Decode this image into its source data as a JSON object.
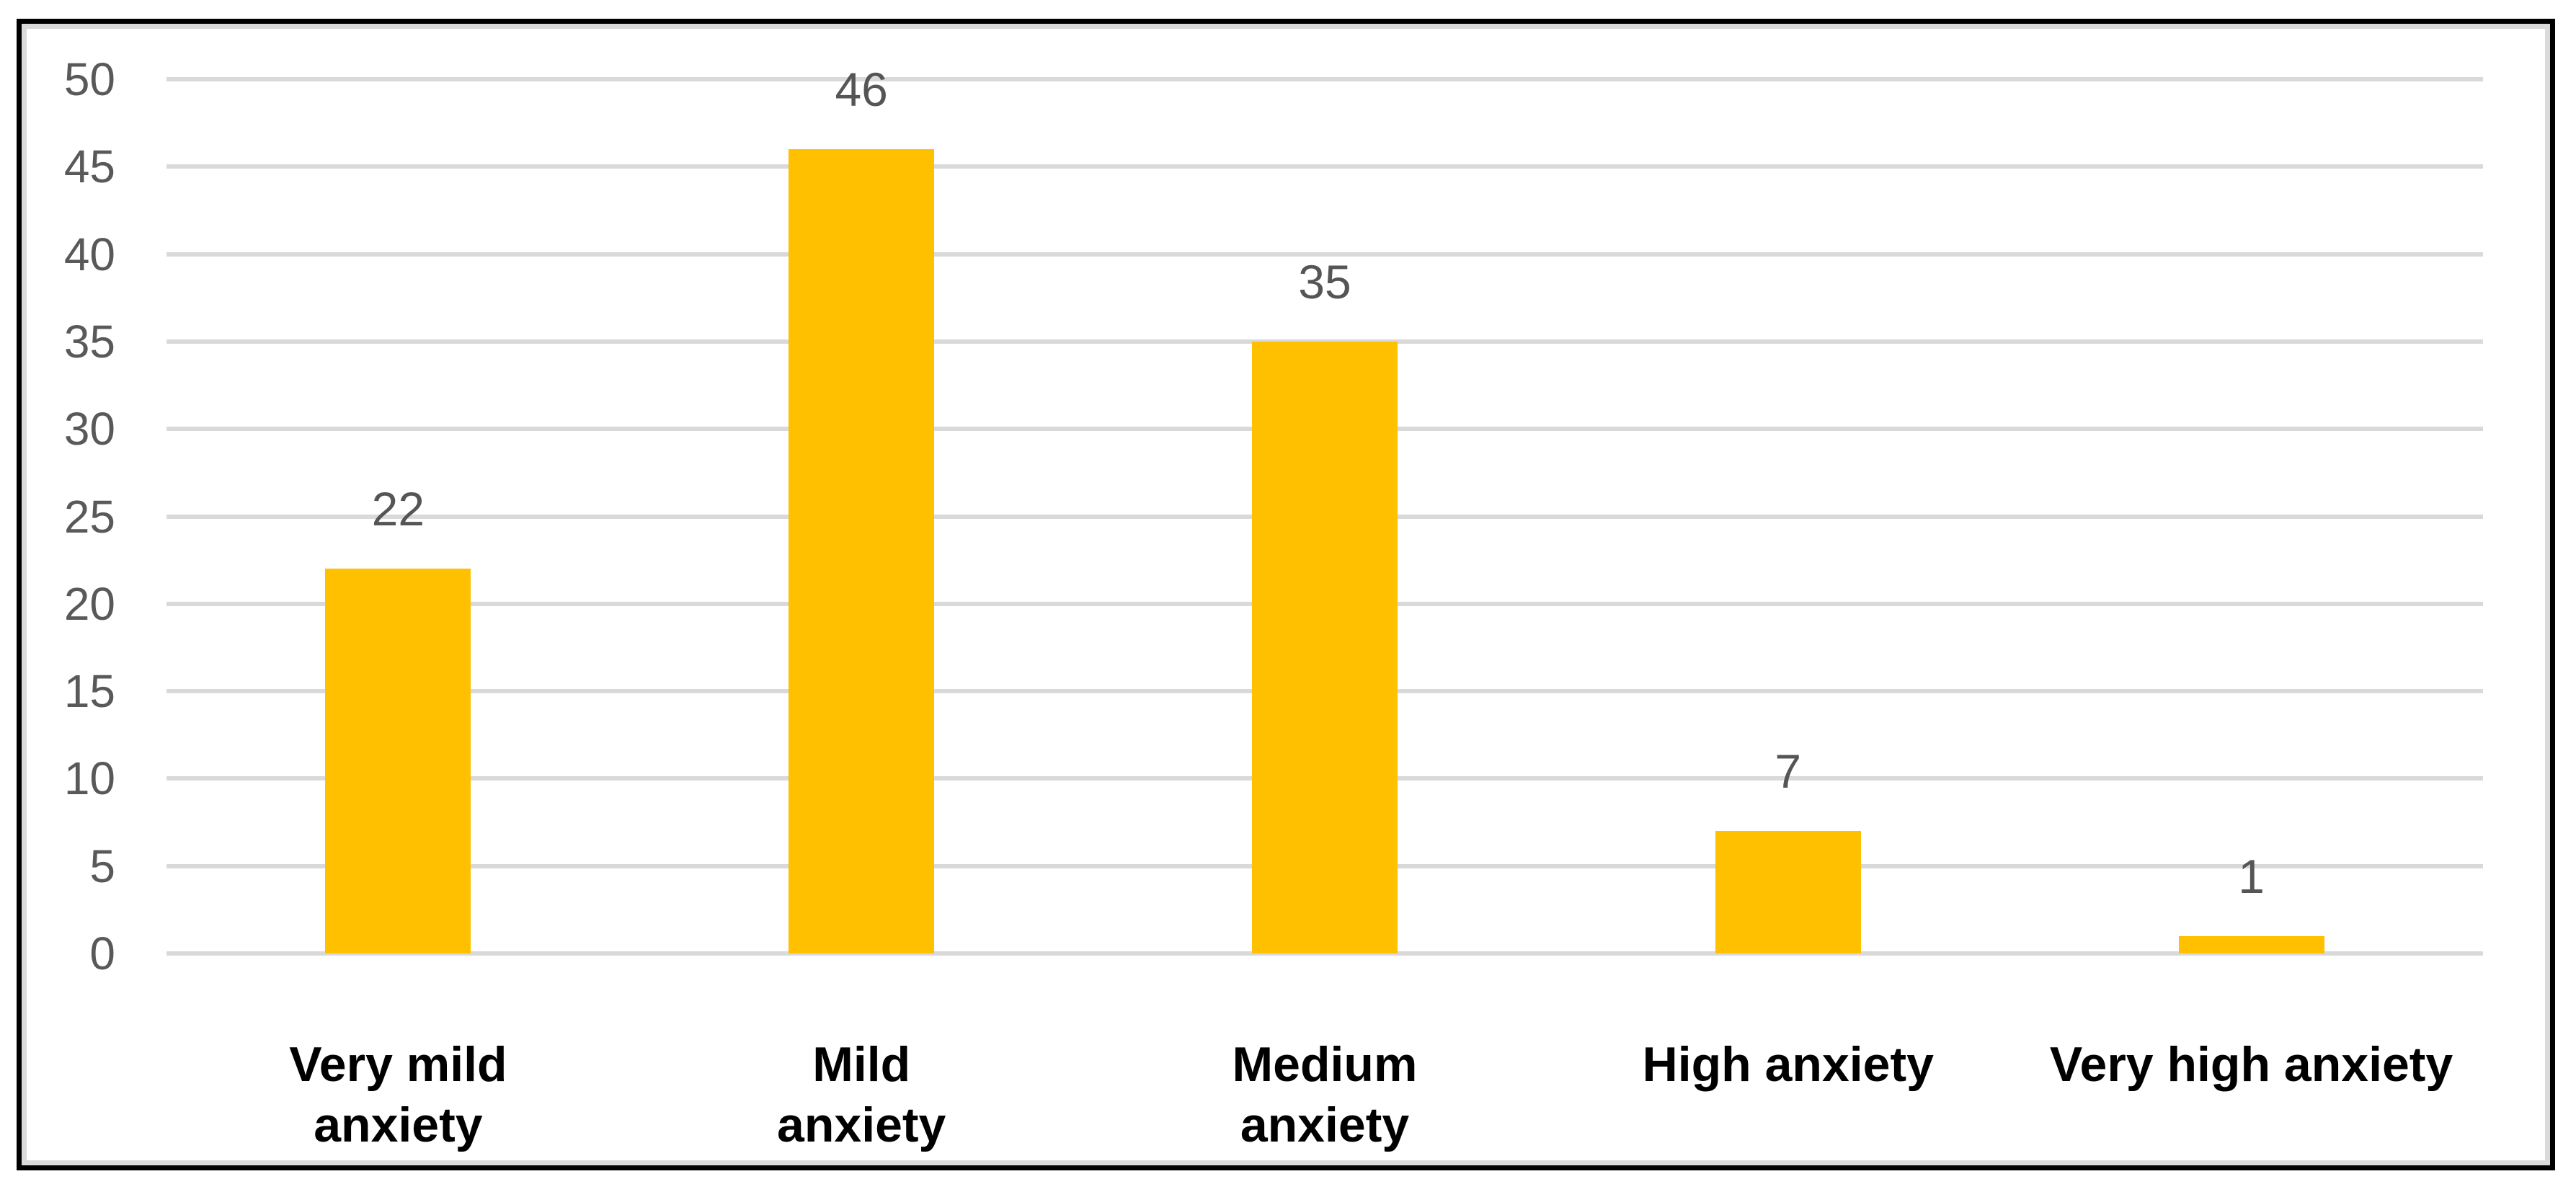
{
  "chart_data": {
    "type": "bar",
    "title": "",
    "xlabel": "",
    "ylabel": "",
    "categories": [
      "Very mild\nanxiety",
      "Mild\nanxiety",
      "Medium\nanxiety",
      "High anxiety",
      "Very high anxiety"
    ],
    "values": [
      22,
      46,
      35,
      7,
      1
    ],
    "data_labels": [
      "22",
      "46",
      "35",
      "7",
      "1"
    ],
    "ylim": [
      0,
      50
    ],
    "yticks": [
      0,
      5,
      10,
      15,
      20,
      25,
      30,
      35,
      40,
      45,
      50
    ],
    "grid": true,
    "legend": "none",
    "colors": {
      "bar": "#FFC000",
      "gridline": "#D9D9D9",
      "tick_label": "#595959",
      "data_label": "#555555",
      "category_label": "#000000",
      "frame_border": "#000000",
      "background": "#FFFFFF"
    }
  }
}
